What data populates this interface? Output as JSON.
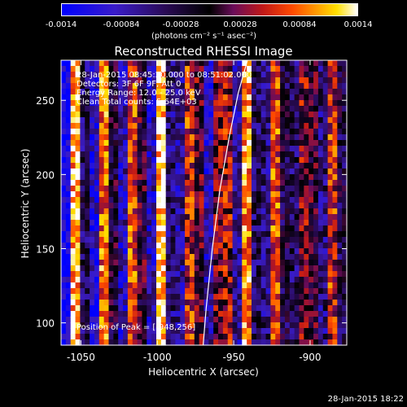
{
  "colorbar": {
    "ticks": [
      "-0.0014",
      "-0.00084",
      "-0.00028",
      "0.00028",
      "0.00084",
      "0.0014"
    ],
    "units_label": "(photons cm⁻² s⁻¹ asec⁻²)"
  },
  "header": {
    "title": "Reconstructed RHESSI Image"
  },
  "info_lines": [
    "28-Jan-2015 08:45:20.000 to 08:51:02.000",
    "Detectors: 3F 6F 9F, Att 0",
    "Energy Range: 12.0 - 25.0 keV",
    "Clean    Total counts: 5.64E+03"
  ],
  "peak_label": "Position of Peak = [-948,256]",
  "footer": {
    "timestamp": "28-Jan-2015 18:22"
  },
  "chart_data": {
    "type": "heatmap",
    "title": "Reconstructed RHESSI Image",
    "xlabel": "Heliocentric X (arcsec)",
    "ylabel": "Heliocentric Y (arcsec)",
    "xlim": [
      -1063,
      -876
    ],
    "ylim": [
      85,
      277
    ],
    "x_ticks": [
      -1050,
      -1000,
      -950,
      -900
    ],
    "y_ticks": [
      100,
      150,
      200,
      250
    ],
    "colorbar_range": [
      -0.0014,
      0.0014
    ],
    "colormap": "blue-black-red-yellow-white",
    "limb_color": "#ffffff",
    "peak_position": [
      -948,
      256
    ],
    "column_pattern_description_values": [
      0.05,
      0.9,
      0.35,
      0.15,
      0.8,
      0.45,
      0.2,
      0.75,
      0.5,
      0.2,
      0.95,
      0.3,
      0.25,
      0.7,
      0.55,
      0.2,
      0.6,
      0.65,
      0.25,
      0.85,
      0.35,
      0.3,
      0.75,
      0.4,
      0.35,
      0.6,
      0.5,
      0.3,
      0.7,
      0.4
    ]
  }
}
